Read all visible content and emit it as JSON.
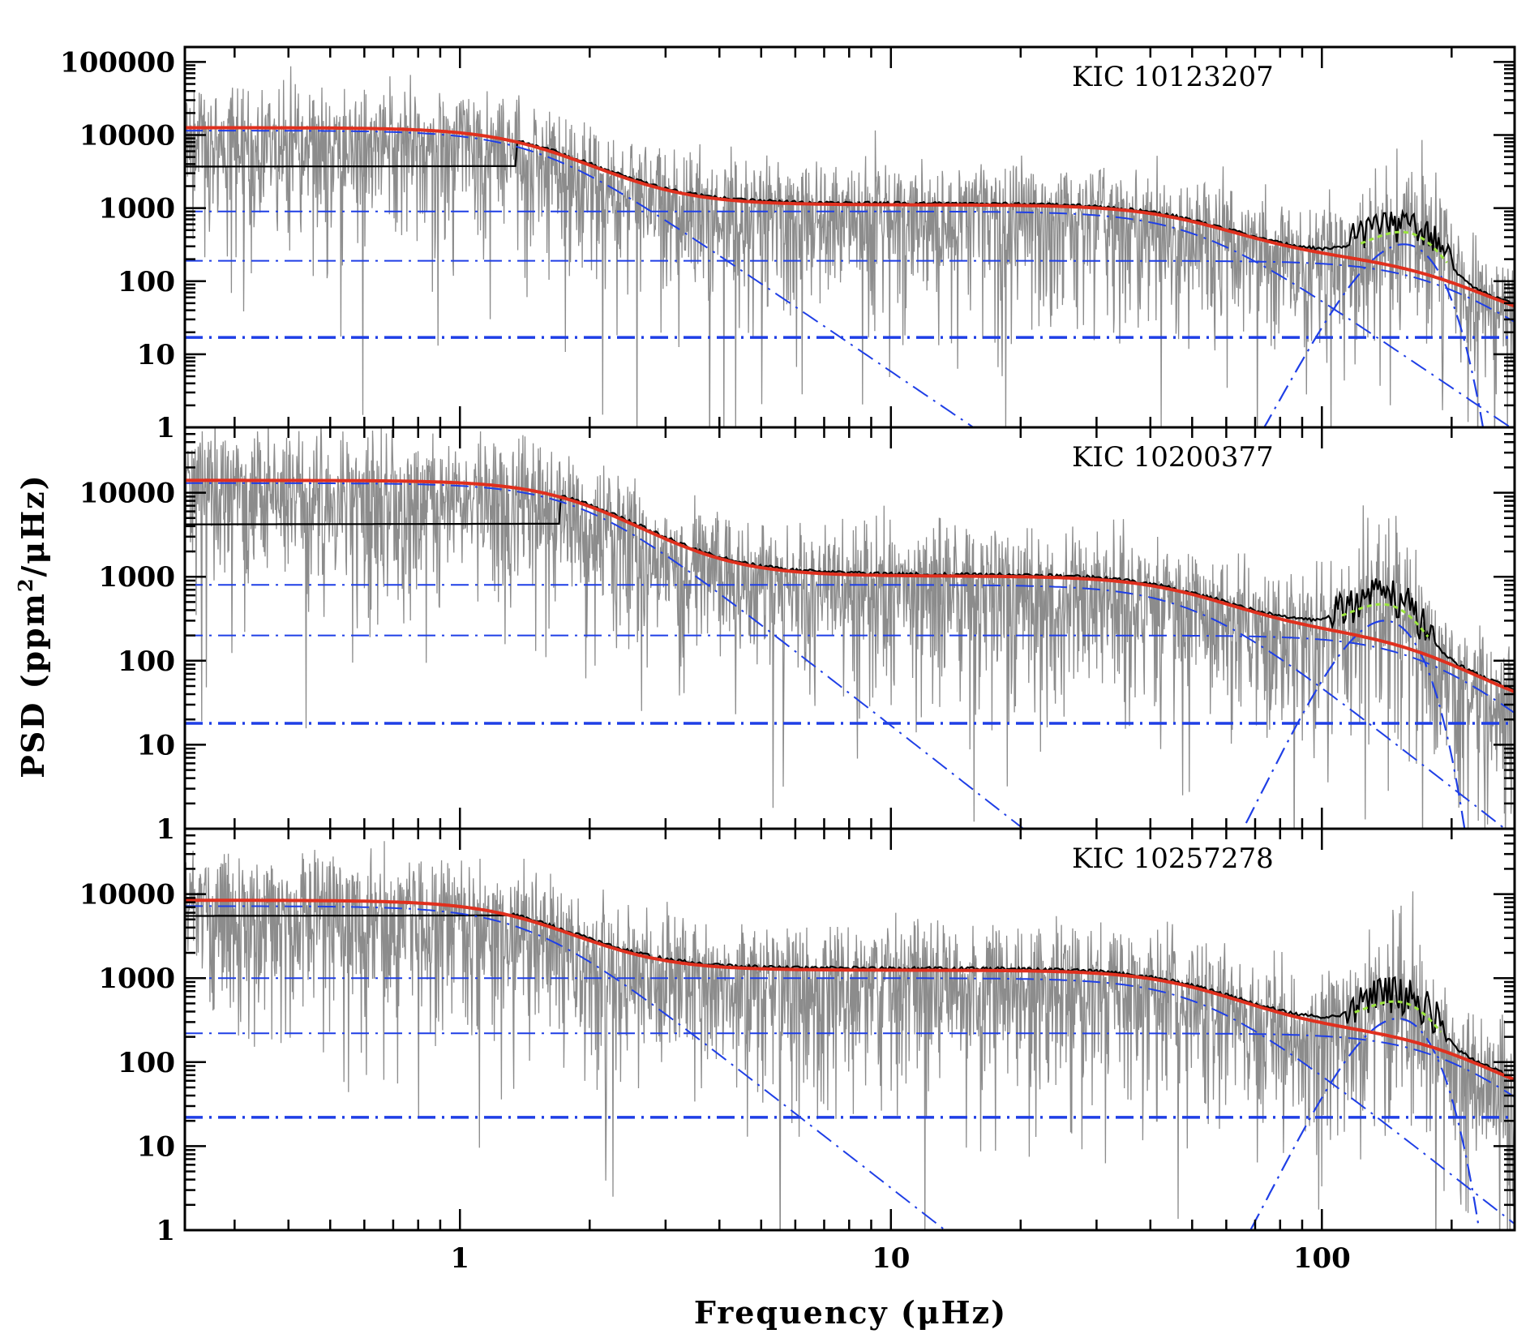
{
  "figure": {
    "xlabel": "Frequency (μHz)",
    "ylabel_main": "PSD (ppm",
    "ylabel_sup": "2",
    "ylabel_end": "/μHz)",
    "x_tick_labels": [
      "1",
      "10",
      "100"
    ],
    "colors": {
      "raw_spectrum": "#8c8c8c",
      "smoothed_spectrum": "#000000",
      "global_fit": "#e0301e",
      "components": "#1f3fe6",
      "mode_envelope_fit": "#9be53c"
    }
  },
  "chart_data": [
    {
      "type": "line",
      "title": "KIC 10123207",
      "xscale": "log",
      "yscale": "log",
      "xlim": [
        0.23,
        280
      ],
      "ylim": [
        1,
        160000
      ],
      "y_tick_labels": [
        "100000",
        "10000",
        "1000",
        "100",
        "10",
        "1"
      ],
      "grid": false,
      "components": {
        "background_1": {
          "amplitude": 11500,
          "characteristic_frequency": 1.5,
          "exponent": 4
        },
        "background_2": {
          "amplitude": 900,
          "characteristic_frequency": 50,
          "exponent": 4
        },
        "background_3": {
          "amplitude": 190,
          "characteristic_frequency": 180,
          "exponent": 4
        },
        "white_noise": 17,
        "oscillation_envelope": {
          "height": 320,
          "nu_max": 155,
          "width": 24
        }
      },
      "smoothed_low_freq_level": 3700,
      "raw_seed": 11
    },
    {
      "type": "line",
      "title": "KIC 10200377",
      "xscale": "log",
      "yscale": "log",
      "xlim": [
        0.23,
        280
      ],
      "ylim": [
        1,
        60000
      ],
      "y_tick_labels": [
        "10000",
        "1000",
        "100",
        "10",
        "1"
      ],
      "grid": false,
      "components": {
        "background_1": {
          "amplitude": 13000,
          "characteristic_frequency": 1.9,
          "exponent": 4
        },
        "background_2": {
          "amplitude": 800,
          "characteristic_frequency": 50,
          "exponent": 4
        },
        "background_3": {
          "amplitude": 200,
          "characteristic_frequency": 170,
          "exponent": 4
        },
        "white_noise": 18,
        "oscillation_envelope": {
          "height": 300,
          "nu_max": 140,
          "width": 22
        }
      },
      "smoothed_low_freq_level": 4200,
      "raw_seed": 23
    },
    {
      "type": "line",
      "title": "KIC 10257278",
      "xscale": "log",
      "yscale": "log",
      "xlim": [
        0.23,
        280
      ],
      "ylim": [
        1,
        60000
      ],
      "y_tick_labels": [
        "10000",
        "1000",
        "100",
        "10",
        "1"
      ],
      "grid": false,
      "components": {
        "background_1": {
          "amplitude": 7200,
          "characteristic_frequency": 1.45,
          "exponent": 4
        },
        "background_2": {
          "amplitude": 1000,
          "characteristic_frequency": 52,
          "exponent": 4
        },
        "background_3": {
          "amplitude": 220,
          "characteristic_frequency": 190,
          "exponent": 4
        },
        "white_noise": 22,
        "oscillation_envelope": {
          "height": 330,
          "nu_max": 150,
          "width": 24
        }
      },
      "smoothed_low_freq_level": 5500,
      "raw_seed": 37
    }
  ]
}
